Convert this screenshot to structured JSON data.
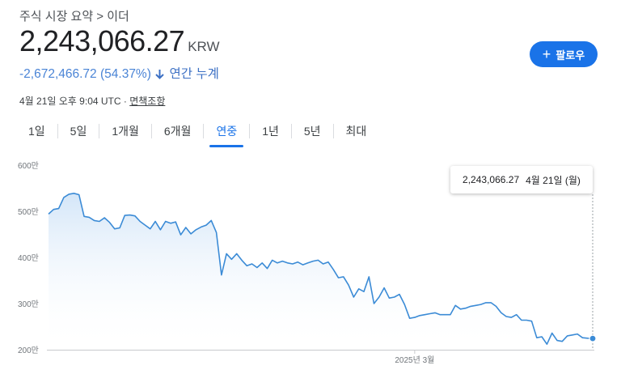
{
  "breadcrumb": "주식 시장 요약 > 이더",
  "price": {
    "value": "2,243,066.27",
    "currency": "KRW"
  },
  "change": {
    "value": "-2,672,466.72",
    "percent": "(54.37%)",
    "period": "연간 누계"
  },
  "timestamp": "4월 21일 오후 9:04 UTC · ",
  "disclaimer": "면책조항",
  "follow_button": {
    "label": "팔로우"
  },
  "tabs": [
    {
      "label": "1일"
    },
    {
      "label": "5일"
    },
    {
      "label": "1개월"
    },
    {
      "label": "6개월"
    },
    {
      "label": "연중"
    },
    {
      "label": "1년"
    },
    {
      "label": "5년"
    },
    {
      "label": "최대"
    }
  ],
  "active_tab": 4,
  "tooltip": {
    "value": "2,243,066.27",
    "date": "4월 21일 (월)"
  },
  "colors": {
    "line": "#3b8bd6",
    "fill_top": "#d4e6f8",
    "accent": "#1a73e8",
    "change": "#4a84d6"
  },
  "chart_data": {
    "type": "area",
    "y_tick_labels": [
      "600만",
      "500만",
      "400만",
      "300만",
      "200만"
    ],
    "y_ticks": [
      6000000,
      5000000,
      4000000,
      3000000,
      2000000
    ],
    "ylim": [
      2000000,
      6000000
    ],
    "x_tick_label": "2025년 3월",
    "x_tick_index": 72,
    "grid": false,
    "series": [
      {
        "values": [
          4940000,
          5040000,
          5060000,
          5300000,
          5370000,
          5390000,
          5360000,
          4890000,
          4870000,
          4800000,
          4780000,
          4860000,
          4760000,
          4620000,
          4640000,
          4910000,
          4920000,
          4900000,
          4780000,
          4700000,
          4620000,
          4780000,
          4600000,
          4780000,
          4740000,
          4770000,
          4490000,
          4650000,
          4510000,
          4600000,
          4660000,
          4700000,
          4800000,
          4540000,
          3620000,
          4080000,
          3960000,
          4080000,
          3940000,
          3820000,
          3860000,
          3780000,
          3880000,
          3760000,
          3940000,
          3880000,
          3920000,
          3880000,
          3860000,
          3900000,
          3840000,
          3880000,
          3920000,
          3940000,
          3860000,
          3900000,
          3740000,
          3560000,
          3580000,
          3400000,
          3140000,
          3320000,
          3260000,
          3580000,
          3000000,
          3140000,
          3340000,
          3120000,
          3140000,
          3200000,
          2980000,
          2680000,
          2700000,
          2740000,
          2760000,
          2780000,
          2800000,
          2760000,
          2760000,
          2760000,
          2960000,
          2880000,
          2900000,
          2940000,
          2960000,
          2980000,
          3020000,
          3020000,
          2940000,
          2800000,
          2720000,
          2700000,
          2760000,
          2640000,
          2640000,
          2620000,
          2260000,
          2280000,
          2120000,
          2360000,
          2200000,
          2180000,
          2300000,
          2320000,
          2340000,
          2260000,
          2250000,
          2243066
        ]
      }
    ]
  }
}
